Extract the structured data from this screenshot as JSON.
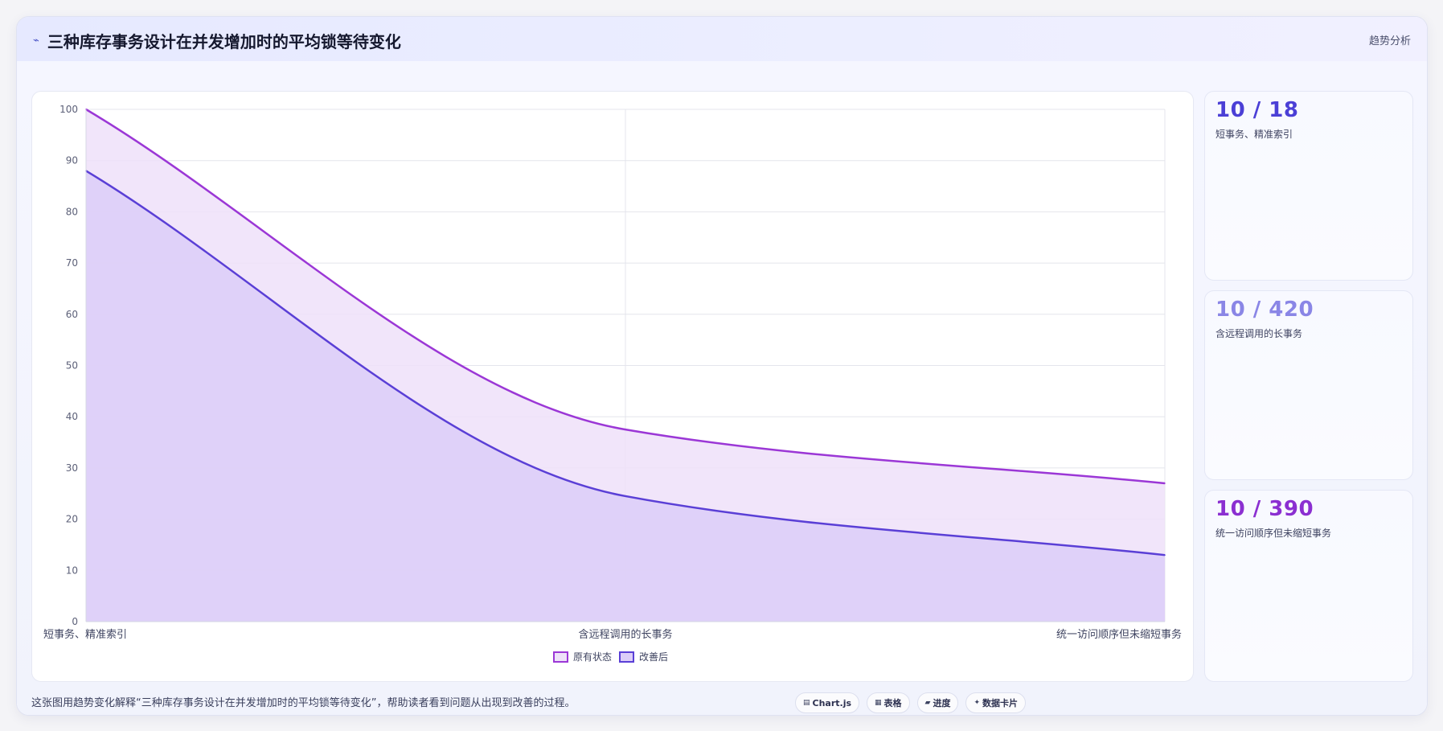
{
  "header": {
    "icon": "trend-line-icon",
    "title": "三种库存事务设计在并发增加时的平均锁等待变化",
    "tag": "趋势分析"
  },
  "stats": [
    {
      "value": "10 / 18",
      "label": "短事务、精准索引",
      "color": "#4b3fd6"
    },
    {
      "value": "10 / 420",
      "label": "含远程调用的长事务",
      "color": "#8a86e6"
    },
    {
      "value": "10 / 390",
      "label": "统一访问顺序但未缩短事务",
      "color": "#8b2fd1"
    }
  ],
  "footer": {
    "note": "这张图用趋势变化解释“三种库存事务设计在并发增加时的平均锁等待变化”，帮助读者看到问题从出现到改善的过程。",
    "pills": [
      {
        "icon": "chart-icon",
        "label": "Chart.js"
      },
      {
        "icon": "table-icon",
        "label": "表格"
      },
      {
        "icon": "progress-icon",
        "label": "进度"
      },
      {
        "icon": "sparkle-icon",
        "label": "数据卡片"
      }
    ]
  },
  "chart_data": {
    "type": "area",
    "categories": [
      "短事务、精准索引",
      "含远程调用的长事务",
      "统一访问顺序但未缩短事务"
    ],
    "series": [
      {
        "name": "原有状态",
        "values": [
          100,
          37.5,
          27
        ],
        "color": "#9b37d6",
        "fill": "#eee1f9"
      },
      {
        "name": "改善后",
        "values": [
          88,
          24.5,
          13
        ],
        "color": "#5a3fd6",
        "fill": "#dccef8"
      }
    ],
    "ylim": [
      0,
      100
    ],
    "yticks": [
      0,
      10,
      20,
      30,
      40,
      50,
      60,
      70,
      80,
      90,
      100
    ],
    "grid": true,
    "legend": "bottom"
  }
}
